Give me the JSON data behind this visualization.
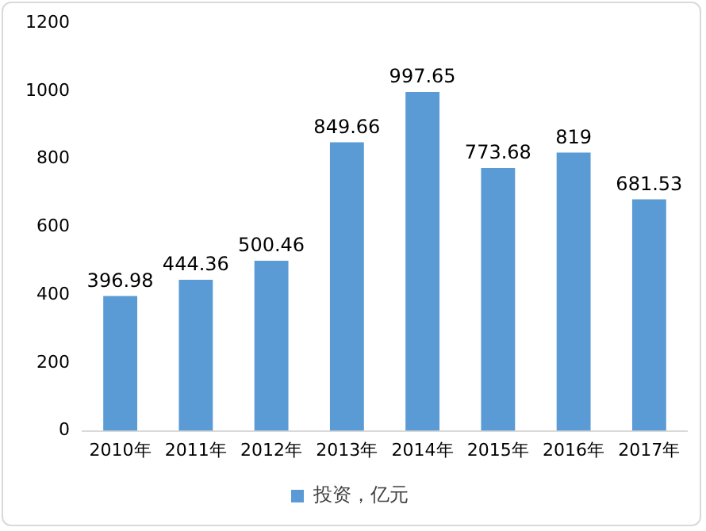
{
  "chart_data": {
    "type": "bar",
    "categories": [
      "2010年",
      "2011年",
      "2012年",
      "2013年",
      "2014年",
      "2015年",
      "2016年",
      "2017年"
    ],
    "series": [
      {
        "name": "投资，亿元",
        "color": "#5b9bd5",
        "values": [
          396.98,
          444.36,
          500.46,
          849.66,
          997.65,
          773.68,
          819,
          681.53
        ]
      }
    ],
    "ylim": [
      0,
      1200
    ],
    "yticks": [
      0,
      200,
      400,
      600,
      800,
      1000,
      1200
    ],
    "grid": false,
    "legend": "bottom",
    "data_labels": true
  }
}
